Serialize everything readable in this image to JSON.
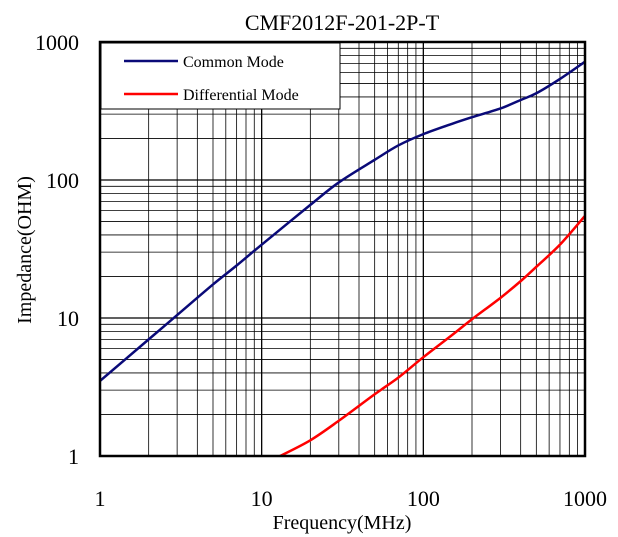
{
  "chart_data": {
    "type": "line",
    "title": "CMF2012F-201-2P-T",
    "xlabel": "Frequency(MHz)",
    "ylabel": "Impedance(OHM)",
    "xscale": "log",
    "yscale": "log",
    "xlim": [
      1,
      1000
    ],
    "ylim": [
      1,
      1000
    ],
    "x_ticks": [
      "1",
      "10",
      "100",
      "1000"
    ],
    "y_ticks": [
      "1",
      "10",
      "100",
      "1000"
    ],
    "grid": true,
    "legend_position": "top-left",
    "series": [
      {
        "name": "Common Mode",
        "color": "#0a0a78",
        "x": [
          1,
          2,
          3,
          5,
          7,
          10,
          20,
          30,
          50,
          70,
          100,
          150,
          200,
          300,
          400,
          500,
          700,
          1000
        ],
        "y": [
          3.5,
          7,
          10.5,
          17.5,
          24,
          34,
          66,
          96,
          140,
          178,
          215,
          255,
          285,
          330,
          380,
          425,
          540,
          720
        ]
      },
      {
        "name": "Differential Mode",
        "color": "#ff0000",
        "x": [
          13,
          20,
          30,
          50,
          70,
          100,
          150,
          200,
          300,
          400,
          500,
          700,
          1000
        ],
        "y": [
          1,
          1.3,
          1.8,
          2.8,
          3.7,
          5.2,
          7.5,
          9.8,
          14,
          18.5,
          23.5,
          34,
          55
        ]
      }
    ]
  }
}
